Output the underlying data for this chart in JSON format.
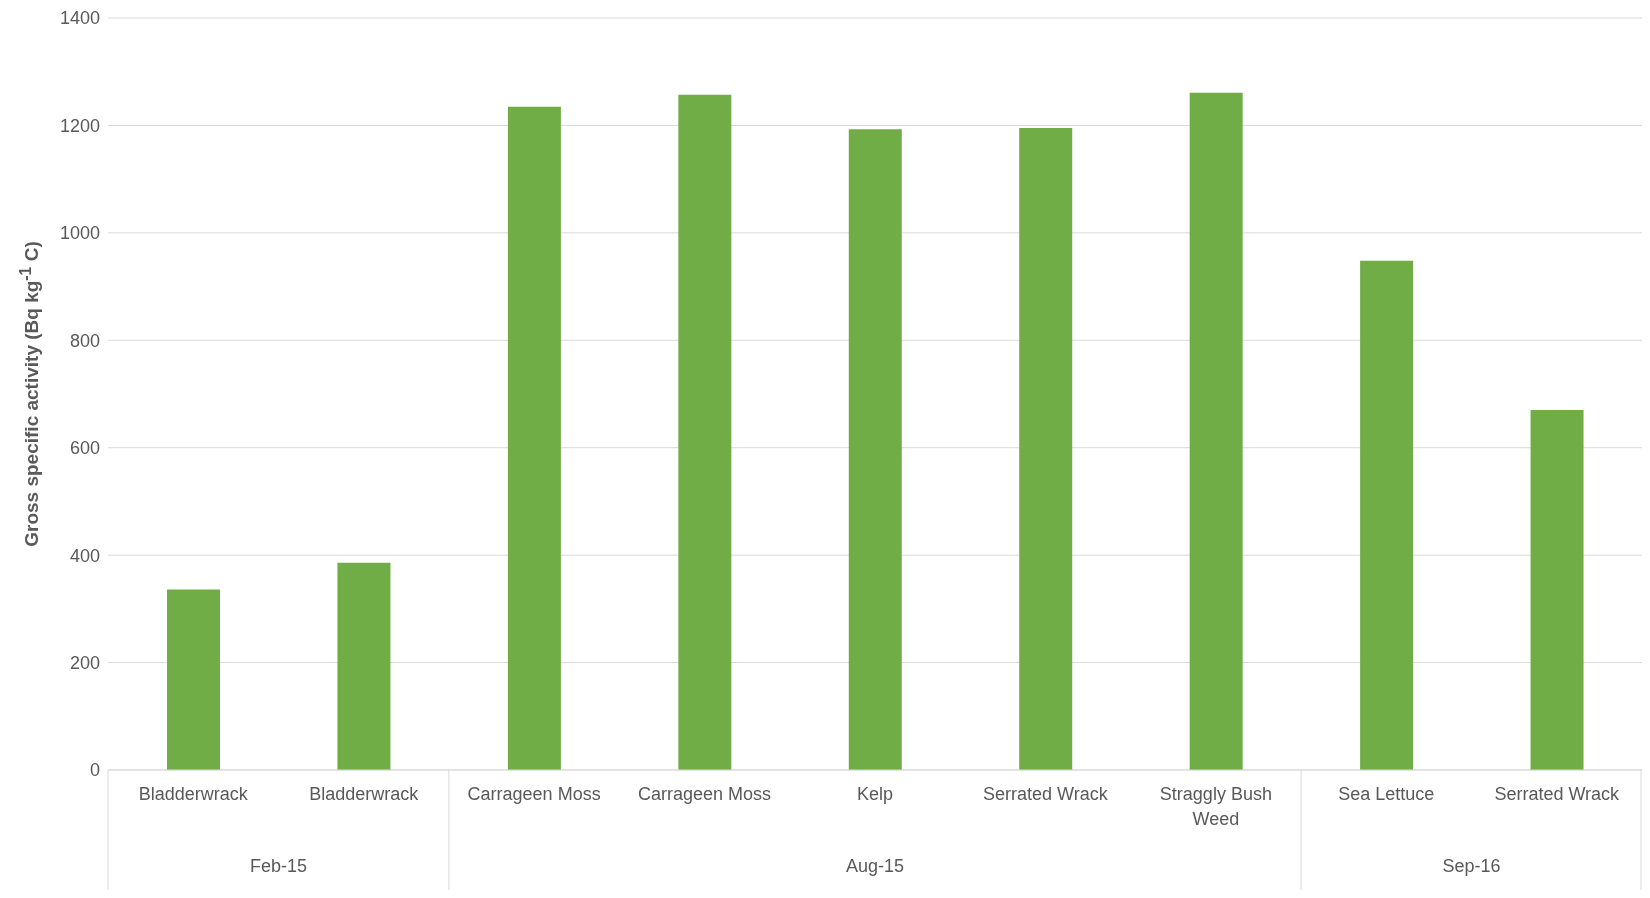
{
  "chart_data": {
    "type": "bar",
    "ylabel": "Gross specific activity (Bq kg$^{-1}$ C)",
    "categories": [
      "Bladderwrack",
      "Bladderwrack",
      "Carrageen Moss",
      "Carrageen Moss",
      "Kelp",
      "Serrated Wrack",
      "Straggly Bush Weed",
      "Sea Lettuce",
      "Serrated Wrack"
    ],
    "values": [
      336,
      386,
      1235,
      1257,
      1193,
      1195,
      1261,
      948,
      670
    ],
    "color": "#70ad47",
    "ylim": [
      0,
      1400
    ],
    "yticks": [
      0,
      200,
      400,
      600,
      800,
      1000,
      1200,
      1400
    ],
    "grid": "y",
    "annotations": [
      "Feb-15",
      "Aug-15",
      "Sep-16"
    ]
  }
}
